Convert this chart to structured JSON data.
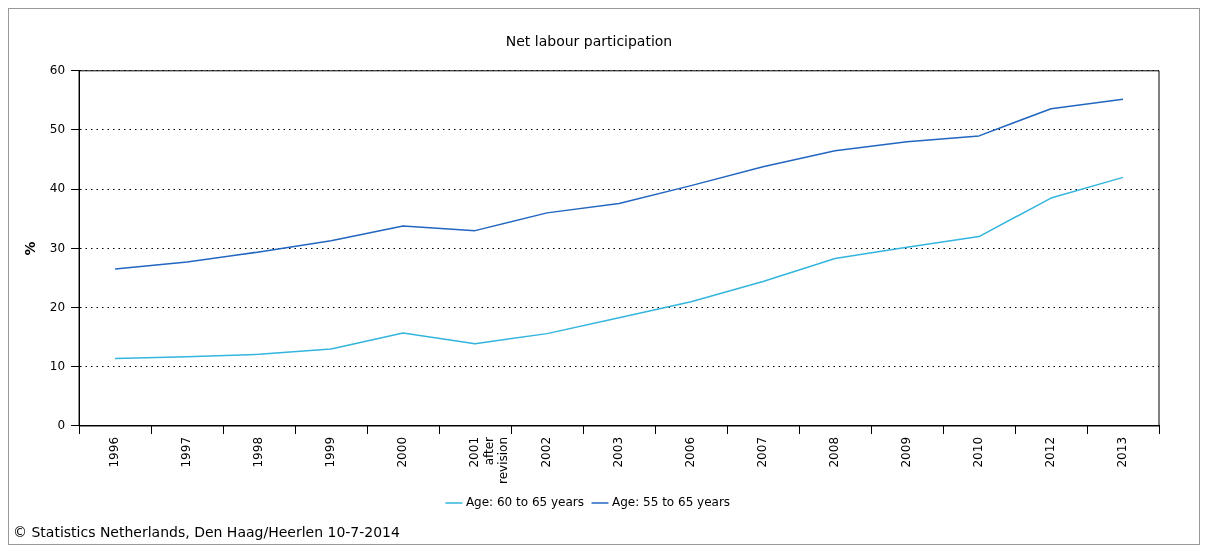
{
  "chart_data": {
    "type": "line",
    "title": "Net labour participation",
    "ylabel": "%",
    "categories": [
      "1996",
      "1997",
      "1998",
      "1999",
      "2000",
      "2001 after revision",
      "2002",
      "2003",
      "2006",
      "2007",
      "2008",
      "2009",
      "2010",
      "2012",
      "2013"
    ],
    "series": [
      {
        "name": "Age: 60 to 65 years",
        "color": "#33b5dd",
        "values": [
          11.4,
          11.7,
          12.1,
          13.0,
          15.7,
          13.9,
          15.6,
          18.3,
          21.0,
          24.4,
          28.3,
          30.2,
          32.0,
          38.5,
          42.0
        ]
      },
      {
        "name": "Age: 55 to 65 years",
        "color": "#2266c0",
        "values": [
          26.5,
          27.7,
          29.4,
          31.3,
          33.8,
          33.0,
          36.0,
          37.6,
          40.6,
          43.8,
          46.5,
          48.0,
          49.0,
          53.6,
          55.2
        ]
      }
    ],
    "ylim": [
      0,
      60
    ],
    "yticks": [
      0,
      10,
      20,
      30,
      40,
      50,
      60
    ],
    "grid": "y",
    "legend": "bottom",
    "marker": "none",
    "line_style": "solid",
    "annotations": [
      "© Statistics Netherlands, Den Haag/Heerlen 10-7-2014"
    ]
  }
}
